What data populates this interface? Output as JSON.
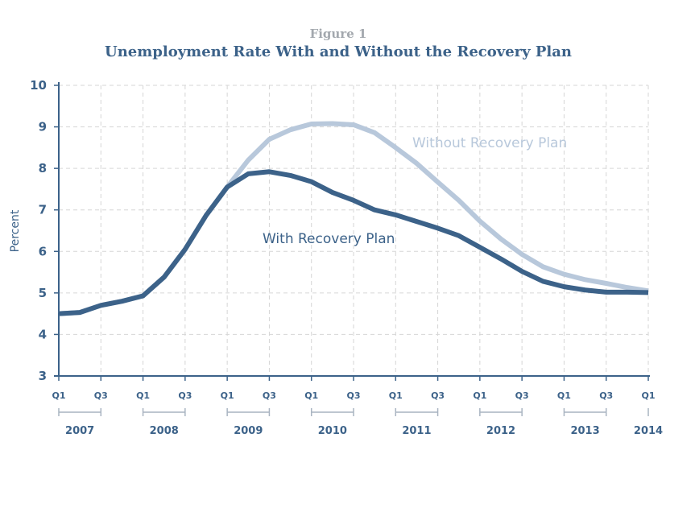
{
  "figure_label": "Figure 1",
  "chart_data": {
    "type": "line",
    "title": "Unemployment Rate With and Without the Recovery Plan",
    "xlabel": "",
    "ylabel": "Percent",
    "ylim": [
      3,
      10
    ],
    "yticks": [
      "3",
      "4",
      "5",
      "6",
      "7",
      "8",
      "9",
      "10"
    ],
    "x": [
      "2007 Q1",
      "2007 Q2",
      "2007 Q3",
      "2007 Q4",
      "2008 Q1",
      "2008 Q2",
      "2008 Q3",
      "2008 Q4",
      "2009 Q1",
      "2009 Q2",
      "2009 Q3",
      "2009 Q4",
      "2010 Q1",
      "2010 Q2",
      "2010 Q3",
      "2010 Q4",
      "2011 Q1",
      "2011 Q2",
      "2011 Q3",
      "2011 Q4",
      "2012 Q1",
      "2012 Q2",
      "2012 Q3",
      "2012 Q4",
      "2013 Q1",
      "2013 Q2",
      "2013 Q3",
      "2013 Q4",
      "2014 Q1"
    ],
    "quarter_ticks": [
      {
        "label": "Q1",
        "index": 0
      },
      {
        "label": "Q3",
        "index": 2
      },
      {
        "label": "Q1",
        "index": 4
      },
      {
        "label": "Q3",
        "index": 6
      },
      {
        "label": "Q1",
        "index": 8
      },
      {
        "label": "Q3",
        "index": 10
      },
      {
        "label": "Q1",
        "index": 12
      },
      {
        "label": "Q3",
        "index": 14
      },
      {
        "label": "Q1",
        "index": 16
      },
      {
        "label": "Q3",
        "index": 18
      },
      {
        "label": "Q1",
        "index": 20
      },
      {
        "label": "Q3",
        "index": 22
      },
      {
        "label": "Q1",
        "index": 24
      },
      {
        "label": "Q3",
        "index": 26
      },
      {
        "label": "Q1",
        "index": 28
      }
    ],
    "years": [
      {
        "label": "2007",
        "start": 0,
        "end": 2
      },
      {
        "label": "2008",
        "start": 4,
        "end": 6
      },
      {
        "label": "2009",
        "start": 8,
        "end": 10
      },
      {
        "label": "2010",
        "start": 12,
        "end": 14
      },
      {
        "label": "2011",
        "start": 16,
        "end": 18
      },
      {
        "label": "2012",
        "start": 20,
        "end": 22
      },
      {
        "label": "2013",
        "start": 24,
        "end": 26
      },
      {
        "label": "2014",
        "start": 28,
        "end": 28
      }
    ],
    "grid": true,
    "series": [
      {
        "name": "Without Recovery Plan",
        "color": "#b8c8db",
        "values": [
          4.5,
          4.53,
          4.7,
          4.8,
          4.93,
          5.38,
          6.05,
          6.87,
          7.55,
          8.2,
          8.7,
          8.93,
          9.07,
          9.08,
          9.05,
          8.86,
          8.5,
          8.12,
          7.67,
          7.23,
          6.73,
          6.3,
          5.93,
          5.63,
          5.45,
          5.32,
          5.23,
          5.13,
          5.05
        ]
      },
      {
        "name": "With Recovery Plan",
        "color": "#3c6289",
        "values": [
          4.5,
          4.53,
          4.7,
          4.8,
          4.93,
          5.38,
          6.05,
          6.87,
          7.55,
          7.87,
          7.92,
          7.83,
          7.68,
          7.42,
          7.23,
          7.0,
          6.88,
          6.72,
          6.56,
          6.38,
          6.1,
          5.82,
          5.52,
          5.28,
          5.15,
          5.07,
          5.02,
          5.02,
          5.01
        ]
      }
    ]
  }
}
